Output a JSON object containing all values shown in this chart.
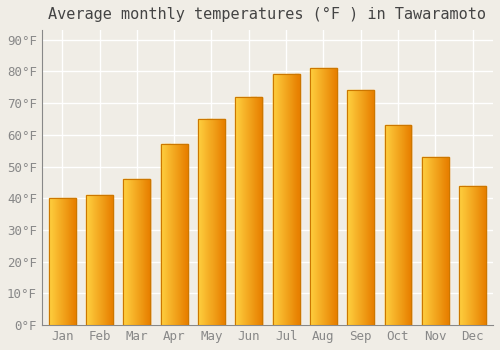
{
  "title": "Average monthly temperatures (°F ) in Tawaramoto",
  "months": [
    "Jan",
    "Feb",
    "Mar",
    "Apr",
    "May",
    "Jun",
    "Jul",
    "Aug",
    "Sep",
    "Oct",
    "Nov",
    "Dec"
  ],
  "values": [
    40,
    41,
    46,
    57,
    65,
    72,
    79,
    81,
    74,
    63,
    53,
    44
  ],
  "bar_color_left": "#FFD040",
  "bar_color_right": "#E88000",
  "bar_edge_color": "#CC7700",
  "ylim": [
    0,
    93
  ],
  "yticks": [
    0,
    10,
    20,
    30,
    40,
    50,
    60,
    70,
    80,
    90
  ],
  "background_color": "#F0EDE6",
  "grid_color": "#FFFFFF",
  "title_fontsize": 11,
  "tick_fontsize": 9,
  "tick_color": "#888888"
}
